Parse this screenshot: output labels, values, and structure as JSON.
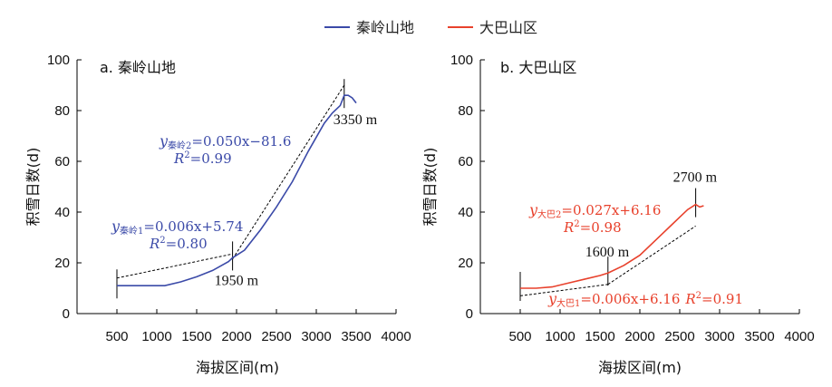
{
  "legend": [
    {
      "name": "秦岭山地",
      "color": "#3b4aa8"
    },
    {
      "name": "大巴山区",
      "color": "#e8412c"
    }
  ],
  "chart_data": [
    {
      "type": "line",
      "title": "a. 秦岭山地",
      "xlabel": "海拔区间(m)",
      "ylabel": "积雪日数(d)",
      "xlim": [
        0,
        4000
      ],
      "ylim": [
        0,
        100
      ],
      "xticks": [
        500,
        1000,
        1500,
        2000,
        2500,
        3000,
        3500,
        4000
      ],
      "yticks": [
        0,
        20,
        40,
        60,
        80,
        100
      ],
      "series": [
        {
          "name": "秦岭山地",
          "color": "#3b4aa8",
          "x": [
            500,
            700,
            900,
            1100,
            1300,
            1500,
            1700,
            1900,
            1950,
            2100,
            2300,
            2500,
            2700,
            2900,
            3100,
            3200,
            3300,
            3350,
            3400,
            3450,
            3500
          ],
          "y": [
            11,
            11,
            11,
            11,
            12.5,
            14.5,
            17,
            20.5,
            22,
            25,
            33,
            42,
            52,
            64,
            75,
            79,
            82,
            86,
            86,
            85,
            83
          ]
        }
      ],
      "fit_lines": [
        {
          "x": [
            500,
            1950
          ],
          "y": [
            14,
            23.5
          ]
        },
        {
          "x": [
            1950,
            3350
          ],
          "y": [
            21.5,
            90
          ]
        }
      ],
      "breakpoints": [
        {
          "x": 500,
          "y": 11
        },
        {
          "x": 1950,
          "y": 22,
          "label": "1950 m"
        },
        {
          "x": 3350,
          "y": 86,
          "label": "3350 m"
        }
      ],
      "annotations": [
        {
          "label": "秦岭2",
          "eq": "=0.050x−81.6",
          "r2": "=0.99"
        },
        {
          "label": "秦岭1",
          "eq": "=0.006x+5.74",
          "r2": "=0.80"
        }
      ]
    },
    {
      "type": "line",
      "title": "b. 大巴山区",
      "xlabel": "海拔区间(m)",
      "ylabel": "积雪日数(d)",
      "xlim": [
        0,
        4000
      ],
      "ylim": [
        0,
        100
      ],
      "xticks": [
        500,
        1000,
        1500,
        2000,
        2500,
        3000,
        3500,
        4000
      ],
      "yticks": [
        0,
        20,
        40,
        60,
        80,
        100
      ],
      "series": [
        {
          "name": "大巴山区",
          "color": "#e8412c",
          "x": [
            500,
            700,
            900,
            1100,
            1300,
            1500,
            1600,
            1800,
            2000,
            2200,
            2400,
            2500,
            2600,
            2700,
            2750,
            2800
          ],
          "y": [
            10,
            10,
            10.5,
            12,
            13.5,
            15,
            16,
            19,
            23,
            29,
            35,
            38,
            41,
            43,
            42,
            42.5
          ]
        }
      ],
      "fit_lines": [
        {
          "x": [
            500,
            1600
          ],
          "y": [
            7,
            11.5
          ]
        },
        {
          "x": [
            1600,
            2700
          ],
          "y": [
            11.5,
            34.5
          ]
        }
      ],
      "breakpoints": [
        {
          "x": 500,
          "y": 10
        },
        {
          "x": 1600,
          "y": 16,
          "label": "1600 m"
        },
        {
          "x": 2700,
          "y": 43,
          "label": "2700 m"
        }
      ],
      "annotations": [
        {
          "label": "大巴2",
          "eq": "=0.027x+6.16",
          "r2": "=0.98"
        },
        {
          "label": "大巴1",
          "eq": "=0.006x+6.16",
          "r2": "=0.91"
        }
      ]
    }
  ]
}
